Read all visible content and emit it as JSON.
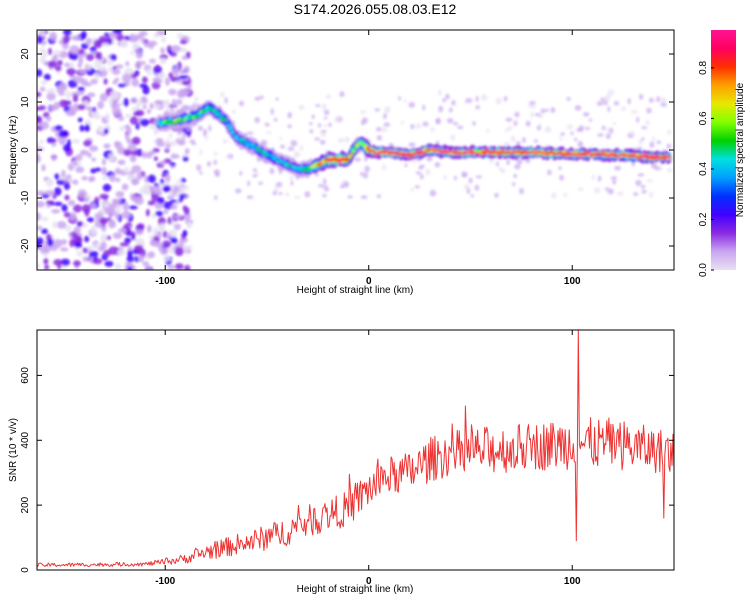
{
  "title": "S174.2026.055.08.03.E12",
  "chart_data": [
    {
      "type": "heatmap",
      "xlabel": "Height of straight line (km)",
      "ylabel": "Frequency (Hz)",
      "xlim": [
        -163,
        150
      ],
      "ylim": [
        -25,
        25
      ],
      "xticks": [
        -100,
        0,
        100
      ],
      "yticks": [
        -20,
        -10,
        0,
        10,
        20
      ],
      "colorbar": {
        "label": "Normalized spectral amplitude",
        "range": [
          0,
          0.95
        ],
        "ticks": [
          0.0,
          0.2,
          0.4,
          0.6,
          0.8
        ],
        "colormap": [
          "#e8e0f2",
          "#c9a6f0",
          "#8a2be2",
          "#4000ff",
          "#0030ff",
          "#00a0ff",
          "#00e0e0",
          "#00d000",
          "#80ff00",
          "#e8e800",
          "#ffa000",
          "#ff3000",
          "#ff0060",
          "#ff1493"
        ]
      },
      "ridge": {
        "x": [
          -103,
          -95,
          -85,
          -78,
          -70,
          -65,
          -58,
          -50,
          -45,
          -40,
          -35,
          -30,
          -25,
          -20,
          -15,
          -10,
          -7,
          -4,
          -2,
          0,
          3,
          10,
          20,
          30,
          40,
          60,
          80,
          100,
          120,
          140,
          148
        ],
        "frequency": [
          5.5,
          6,
          7,
          9,
          6,
          2.5,
          1,
          -1,
          -2,
          -3,
          -4,
          -4,
          -3,
          -2,
          -2,
          -2,
          0.5,
          1.5,
          0.8,
          0,
          -0.5,
          -0.5,
          -1,
          0,
          -0.5,
          -0.5,
          -0.5,
          -0.8,
          -1,
          -1.5,
          -1.5
        ],
        "peak_amplitude": [
          0.5,
          0.55,
          0.55,
          0.5,
          0.45,
          0.4,
          0.45,
          0.45,
          0.4,
          0.45,
          0.4,
          0.5,
          0.7,
          0.8,
          0.85,
          0.75,
          0.55,
          0.6,
          0.7,
          0.8,
          0.9,
          0.92,
          0.9,
          0.85,
          0.88,
          0.9,
          0.85,
          0.9,
          0.9,
          0.9,
          0.85
        ]
      },
      "noise_region": {
        "x_from": -163,
        "x_to": -100,
        "note_amplitude": "0.05-0.25"
      }
    },
    {
      "type": "line",
      "series_color": "#ee3333",
      "xlabel": "Height of straight line (km)",
      "ylabel": "SNR (10 * v/v)",
      "xlim": [
        -163,
        150
      ],
      "ylim": [
        0,
        740
      ],
      "xticks": [
        -100,
        0,
        100
      ],
      "yticks": [
        0,
        200,
        400,
        600
      ],
      "trend": {
        "x": [
          -163,
          -110,
          -100,
          -90,
          -80,
          -70,
          -60,
          -50,
          -40,
          -30,
          -20,
          -10,
          0,
          10,
          20,
          30,
          40,
          60,
          80,
          100,
          120,
          140,
          150
        ],
        "y": [
          15,
          18,
          25,
          35,
          55,
          70,
          85,
          100,
          120,
          150,
          170,
          190,
          250,
          290,
          300,
          340,
          360,
          370,
          380,
          390,
          390,
          370,
          360
        ],
        "spread": [
          6,
          6,
          10,
          15,
          25,
          30,
          35,
          40,
          45,
          50,
          50,
          55,
          60,
          60,
          65,
          70,
          70,
          75,
          75,
          80,
          80,
          70,
          70
        ]
      },
      "spikes": [
        {
          "x": 103,
          "y": 740
        },
        {
          "x": 102,
          "y": 90
        },
        {
          "x": 145,
          "y": 160
        }
      ]
    }
  ]
}
